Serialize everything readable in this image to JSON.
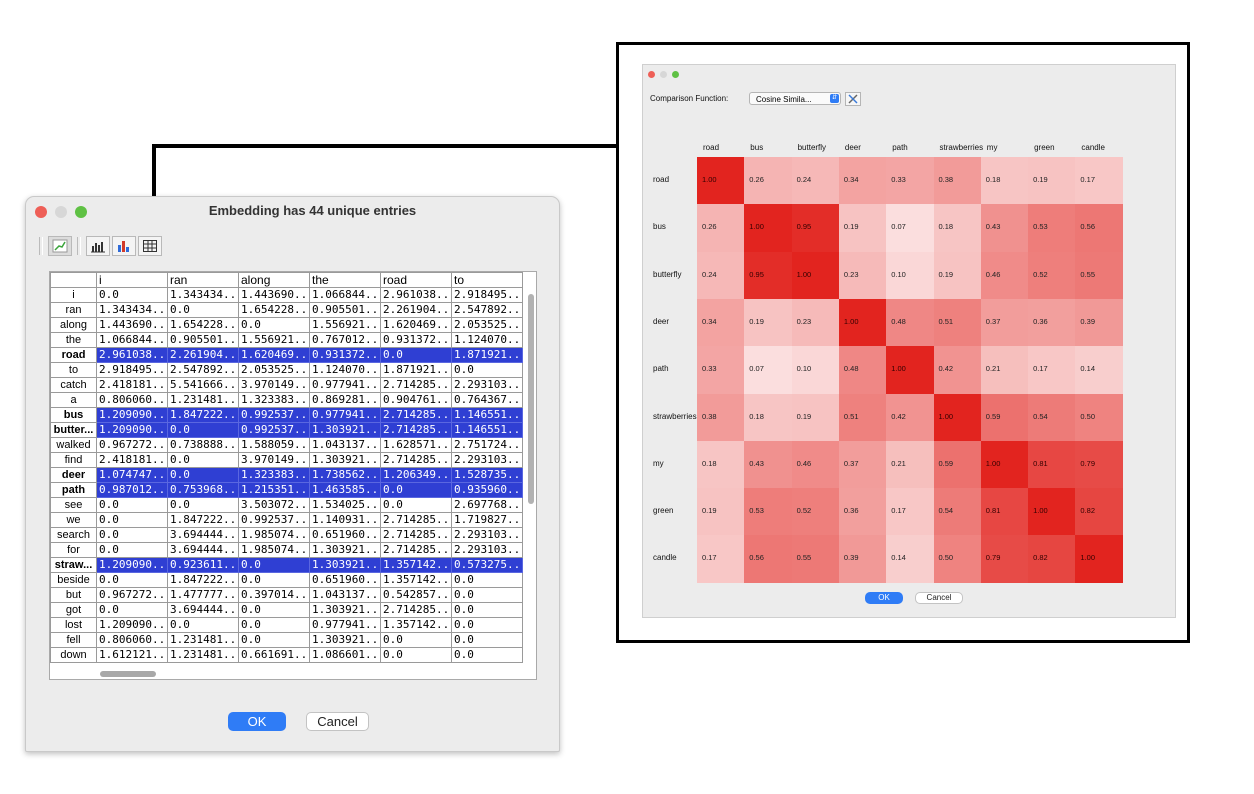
{
  "left_window": {
    "title": "Embedding has 44 unique entries",
    "toolbar": {
      "buttons": [
        {
          "icon": "line-chart-icon",
          "active": true
        },
        {
          "icon": "bar-chart-icon"
        },
        {
          "icon": "colored-bar-chart-icon"
        },
        {
          "icon": "table-grid-icon"
        }
      ]
    },
    "table": {
      "columns": [
        "i",
        "ran",
        "along",
        "the",
        "road",
        "to"
      ],
      "rows": [
        {
          "label": "i",
          "selected": false,
          "values": [
            "0.0",
            "1.343434...",
            "1.443690...",
            "1.066844...",
            "2.961038...",
            "2.918495..."
          ]
        },
        {
          "label": "ran",
          "selected": false,
          "values": [
            "1.343434...",
            "0.0",
            "1.654228...",
            "0.905501...",
            "2.261904...",
            "2.547892..."
          ]
        },
        {
          "label": "along",
          "selected": false,
          "values": [
            "1.443690...",
            "1.654228...",
            "0.0",
            "1.556921...",
            "1.620469...",
            "2.053525..."
          ]
        },
        {
          "label": "the",
          "selected": false,
          "values": [
            "1.066844...",
            "0.905501...",
            "1.556921...",
            "0.767012...",
            "0.931372...",
            "1.124070..."
          ]
        },
        {
          "label": "road",
          "selected": true,
          "values": [
            "2.961038...",
            "2.261904...",
            "1.620469...",
            "0.931372...",
            "0.0",
            "1.871921..."
          ]
        },
        {
          "label": "to",
          "selected": false,
          "values": [
            "2.918495...",
            "2.547892...",
            "2.053525...",
            "1.124070...",
            "1.871921...",
            "0.0"
          ]
        },
        {
          "label": "catch",
          "selected": false,
          "values": [
            "2.418181...",
            "5.541666...",
            "3.970149...",
            "0.977941...",
            "2.714285...",
            "2.293103..."
          ]
        },
        {
          "label": "a",
          "selected": false,
          "values": [
            "0.806060...",
            "1.231481...",
            "1.323383...",
            "0.869281...",
            "0.904761...",
            "0.764367..."
          ]
        },
        {
          "label": "bus",
          "selected": true,
          "values": [
            "1.209090...",
            "1.847222...",
            "0.992537...",
            "0.977941...",
            "2.714285...",
            "1.146551..."
          ]
        },
        {
          "label": "butter...",
          "selected": true,
          "values": [
            "1.209090...",
            "0.0",
            "0.992537...",
            "1.303921...",
            "2.714285...",
            "1.146551..."
          ]
        },
        {
          "label": "walked",
          "selected": false,
          "values": [
            "0.967272...",
            "0.738888...",
            "1.588059...",
            "1.043137...",
            "1.628571...",
            "2.751724..."
          ]
        },
        {
          "label": "find",
          "selected": false,
          "values": [
            "2.418181...",
            "0.0",
            "3.970149...",
            "1.303921...",
            "2.714285...",
            "2.293103..."
          ]
        },
        {
          "label": "deer",
          "selected": true,
          "values": [
            "1.074747...",
            "0.0",
            "1.323383...",
            "1.738562...",
            "1.206349...",
            "1.528735..."
          ]
        },
        {
          "label": "path",
          "selected": true,
          "values": [
            "0.987012...",
            "0.753968...",
            "1.215351...",
            "1.463585...",
            "0.0",
            "0.935960..."
          ]
        },
        {
          "label": "see",
          "selected": false,
          "values": [
            "0.0",
            "0.0",
            "3.503072...",
            "1.534025...",
            "0.0",
            "2.697768..."
          ]
        },
        {
          "label": "we",
          "selected": false,
          "values": [
            "0.0",
            "1.847222...",
            "0.992537...",
            "1.140931...",
            "2.714285...",
            "1.719827..."
          ]
        },
        {
          "label": "search",
          "selected": false,
          "values": [
            "0.0",
            "3.694444...",
            "1.985074...",
            "0.651960...",
            "2.714285...",
            "2.293103..."
          ]
        },
        {
          "label": "for",
          "selected": false,
          "values": [
            "0.0",
            "3.694444...",
            "1.985074...",
            "1.303921...",
            "2.714285...",
            "2.293103..."
          ]
        },
        {
          "label": "straw...",
          "selected": true,
          "values": [
            "1.209090...",
            "0.923611...",
            "0.0",
            "1.303921...",
            "1.357142...",
            "0.573275..."
          ]
        },
        {
          "label": "beside",
          "selected": false,
          "values": [
            "0.0",
            "1.847222...",
            "0.0",
            "0.651960...",
            "1.357142...",
            "0.0"
          ]
        },
        {
          "label": "but",
          "selected": false,
          "values": [
            "0.967272...",
            "1.477777...",
            "0.397014...",
            "1.043137...",
            "0.542857...",
            "0.0"
          ]
        },
        {
          "label": "got",
          "selected": false,
          "values": [
            "0.0",
            "3.694444...",
            "0.0",
            "1.303921...",
            "2.714285...",
            "0.0"
          ]
        },
        {
          "label": "lost",
          "selected": false,
          "values": [
            "1.209090...",
            "0.0",
            "0.0",
            "0.977941...",
            "1.357142...",
            "0.0"
          ]
        },
        {
          "label": "fell",
          "selected": false,
          "values": [
            "0.806060...",
            "1.231481...",
            "0.0",
            "1.303921...",
            "0.0",
            "0.0"
          ]
        },
        {
          "label": "down",
          "selected": false,
          "values": [
            "1.612121...",
            "1.231481...",
            "0.661691...",
            "1.086601...",
            "0.0",
            "0.0"
          ]
        }
      ]
    },
    "ok_label": "OK",
    "cancel_label": "Cancel"
  },
  "right_window": {
    "comparison_label": "Comparison Function:",
    "comparison_value": "Cosine Simila...",
    "labels": [
      "road",
      "bus",
      "butterfly",
      "deer",
      "path",
      "strawberries",
      "my",
      "green",
      "candle"
    ],
    "column_labels": [
      "road",
      "bus",
      "butterfly",
      "deer",
      "path",
      "strawberries",
      "my",
      "green",
      "candle"
    ],
    "row_labels": [
      "road",
      "bus",
      "butterfly",
      "deer",
      "path",
      "strawberries",
      "my",
      "green",
      "candle"
    ],
    "matrix": [
      [
        "1.00",
        "0.26",
        "0.24",
        "0.34",
        "0.33",
        "0.38",
        "0.18",
        "0.19",
        "0.17"
      ],
      [
        "0.26",
        "1.00",
        "0.95",
        "0.19",
        "0.07",
        "0.18",
        "0.43",
        "0.53",
        "0.56"
      ],
      [
        "0.24",
        "0.95",
        "1.00",
        "0.23",
        "0.10",
        "0.19",
        "0.46",
        "0.52",
        "0.55"
      ],
      [
        "0.34",
        "0.19",
        "0.23",
        "1.00",
        "0.48",
        "0.51",
        "0.37",
        "0.36",
        "0.39"
      ],
      [
        "0.33",
        "0.07",
        "0.10",
        "0.48",
        "1.00",
        "0.42",
        "0.21",
        "0.17",
        "0.14"
      ],
      [
        "0.38",
        "0.18",
        "0.19",
        "0.51",
        "0.42",
        "1.00",
        "0.59",
        "0.54",
        "0.50"
      ],
      [
        "0.18",
        "0.43",
        "0.46",
        "0.37",
        "0.21",
        "0.59",
        "1.00",
        "0.81",
        "0.79"
      ],
      [
        "0.19",
        "0.53",
        "0.52",
        "0.36",
        "0.17",
        "0.54",
        "0.81",
        "1.00",
        "0.82"
      ],
      [
        "0.17",
        "0.56",
        "0.55",
        "0.39",
        "0.14",
        "0.50",
        "0.79",
        "0.82",
        "1.00"
      ]
    ],
    "colors": {
      "high": "#e2241f",
      "low": "#fdf1f1"
    },
    "ok_label": "OK",
    "cancel_label": "Cancel"
  }
}
